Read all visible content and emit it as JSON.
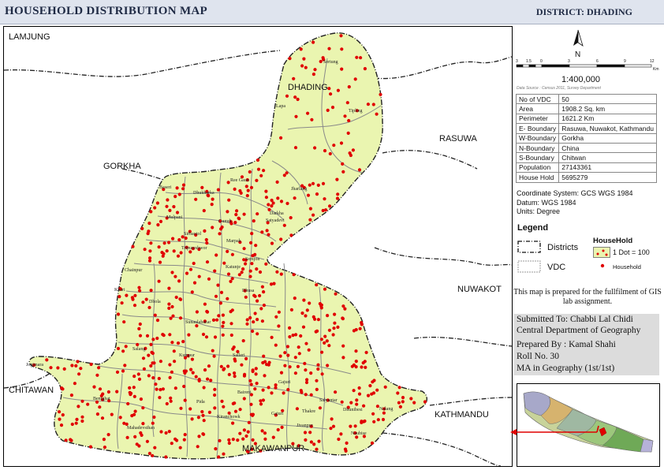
{
  "header": {
    "title": "HOUSEHOLD  DISTRIBUTION MAP",
    "district": "DISTRICT: DHADING"
  },
  "map": {
    "district_label": "DHADING",
    "neighbors": {
      "lamjung": "LAMJUNG",
      "gorkha": "GORKHA",
      "rasuwa": "RASUWA",
      "nuwakot": "NUWAKOT",
      "chitawan": "CHITAWAN",
      "kathmandu": "KATHMANDU",
      "makawanpur": "MAKAWANPUR"
    },
    "vdc_labels": [
      "Sertung",
      "Lapa",
      "Tipling",
      "Jharlang",
      "Ree Gaun",
      "Baseri",
      "Dhukharka",
      "Darkha",
      "Mulpani",
      "Gumdi",
      "Satyadevi",
      "Sirbaotol",
      "Marpak",
      "Tripureshwor",
      "Semjon",
      "Chainpur",
      "Katunje",
      "Khari",
      "Dhusa",
      "Dhola",
      "Salang",
      "Sunaulabazar",
      "Jogimara",
      "Kumpur",
      "Salleri",
      "Gajuri",
      "Benighat",
      "Pida",
      "Baireni",
      "Naubise",
      "Thakre",
      "Kiranchowk",
      "Gajuri",
      "Jivanpur",
      "Mahadevsthan",
      "Salyantar",
      "Dhunibesi",
      "Nalang"
    ],
    "household_color": "#e00000",
    "district_fill": "#eaf5b0"
  },
  "scale": {
    "ticks": [
      "3",
      "1.5",
      "0",
      "3",
      "6",
      "9",
      "12"
    ],
    "unit": "Km",
    "ratio": "1:400,000"
  },
  "north": {
    "label": "N"
  },
  "source": "Data Source : Census 2011, Survey Department",
  "info_table": [
    {
      "key": "No of VDC",
      "value": "50"
    },
    {
      "key": "Area",
      "value": "1908.2 Sq. km"
    },
    {
      "key": "Perimeter",
      "value": "1621.2 Km"
    },
    {
      "key": "E- Boundary",
      "value": "Rasuwa, Nuwakot, Kathmandu"
    },
    {
      "key": "W-Boundary",
      "value": "Gorkha"
    },
    {
      "key": "N-Boundary",
      "value": "China"
    },
    {
      "key": "S-Boundary",
      "value": "Chitwan"
    },
    {
      "key": "Population",
      "value": "27143361"
    },
    {
      "key": "House Hold",
      "value": "5695279"
    }
  ],
  "coordinate": {
    "system": "Coordinate System: GCS WGS 1984",
    "datum": "Datum: WGS 1984",
    "units": "Units: Degree"
  },
  "legend": {
    "title": "Legend",
    "districts": "Districts",
    "vdc": "VDC",
    "household_title": "HouseHold",
    "dot_value": "1 Dot = 100",
    "household": "Household"
  },
  "note": "This map is prepared for the fullfilment of GIS lab assignment.",
  "submission": {
    "submitted_to": "Submitted To: Chabbi Lal Chidi",
    "department": "Central Department of Geography",
    "prepared_by": "Prepared By : Kamal Shahi",
    "roll": "Roll No. 30",
    "program": "MA in Geography (1st/1st)"
  }
}
